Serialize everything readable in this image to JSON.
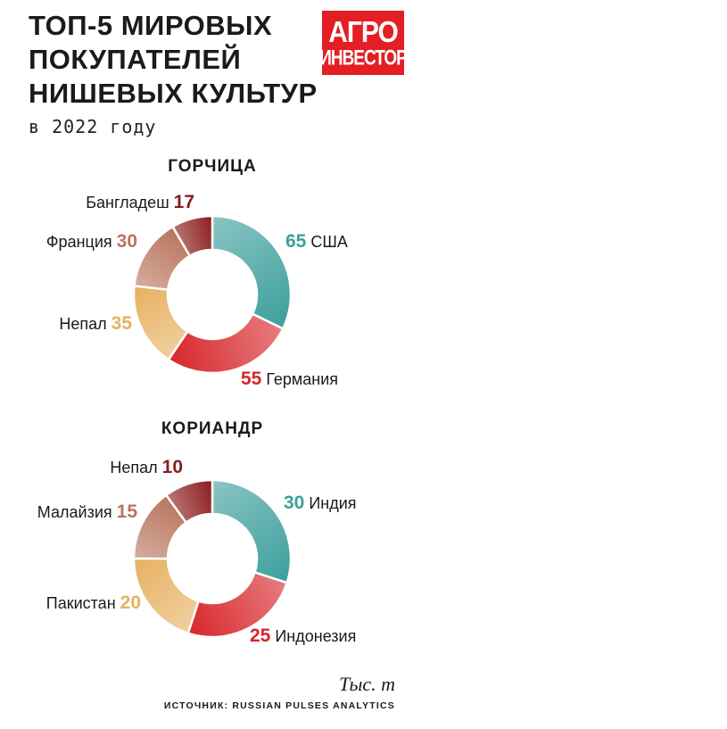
{
  "header": {
    "title_lines": [
      "ТОП-5 МИРОВЫХ",
      "ПОКУПАТЕЛЕЙ",
      "НИШЕВЫХ КУЛЬТУР"
    ],
    "subtitle": "в 2022 году"
  },
  "logo": {
    "line1": "АГРО",
    "line2": "ИНВЕСТОР",
    "color": "#e31e24"
  },
  "chart_data": [
    {
      "type": "donut",
      "title": "ГОРЧИЦА",
      "slices": [
        {
          "label": "США",
          "value": 65,
          "color": "#3c9f9c"
        },
        {
          "label": "Германия",
          "value": 55,
          "color": "#d7262b"
        },
        {
          "label": "Непал",
          "value": 35,
          "color": "#e6b160"
        },
        {
          "label": "Франция",
          "value": 30,
          "color": "#b9755e"
        },
        {
          "label": "Бангладеш",
          "value": 17,
          "color": "#8b1c1c"
        }
      ]
    },
    {
      "type": "donut",
      "title": "КОРИАНДР",
      "slices": [
        {
          "label": "Индия",
          "value": 30,
          "color": "#3c9f9c"
        },
        {
          "label": "Индонезия",
          "value": 25,
          "color": "#d7262b"
        },
        {
          "label": "Пакистан",
          "value": 20,
          "color": "#e6b160"
        },
        {
          "label": "Малайзия",
          "value": 15,
          "color": "#b9755e"
        },
        {
          "label": "Непал",
          "value": 10,
          "color": "#8b1c1c"
        }
      ]
    }
  ],
  "footer": {
    "unit": "Тыс. т",
    "source": "ИСТОЧНИК: RUSSIAN PULSES ANALYTICS"
  }
}
